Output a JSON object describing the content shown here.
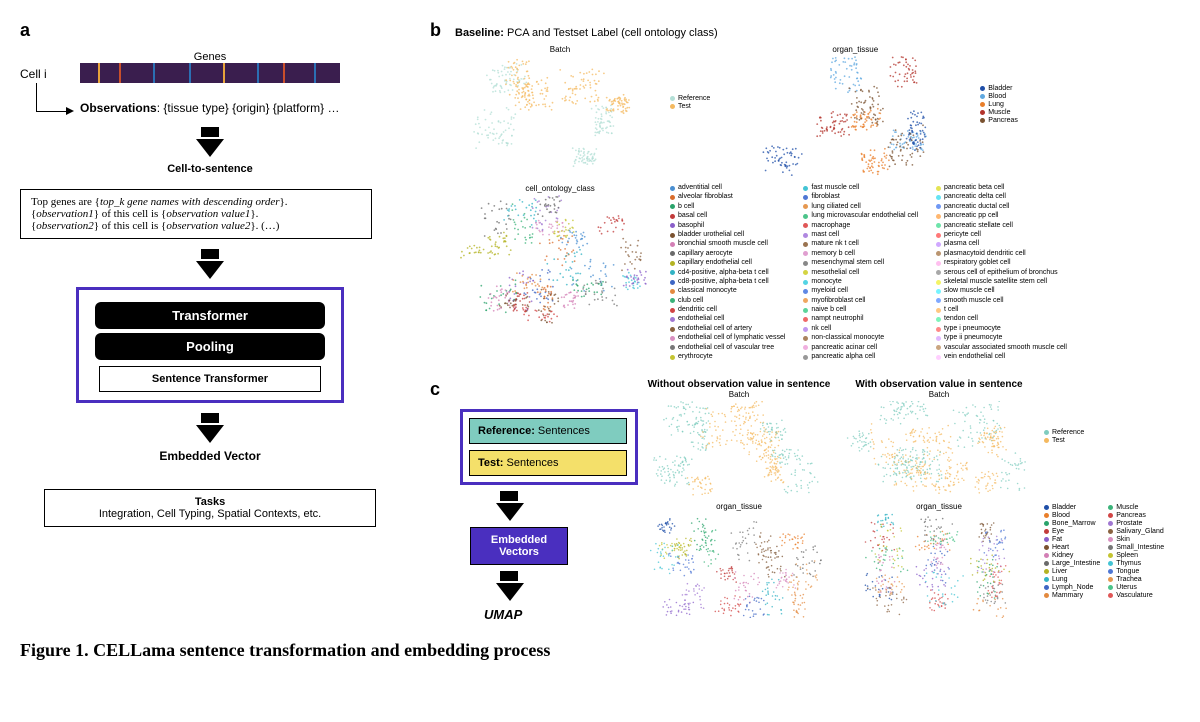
{
  "panelA": {
    "label": "a",
    "genesLabel": "Genes",
    "cellLabel": "Cell i",
    "geneTicks": [
      {
        "pos": 0.07,
        "color": "#e8a33b"
      },
      {
        "pos": 0.15,
        "color": "#c94f2b"
      },
      {
        "pos": 0.28,
        "color": "#2b6fb3"
      },
      {
        "pos": 0.42,
        "color": "#2b6fb3"
      },
      {
        "pos": 0.55,
        "color": "#e8a33b"
      },
      {
        "pos": 0.68,
        "color": "#2b6fb3"
      },
      {
        "pos": 0.78,
        "color": "#c94f2b"
      },
      {
        "pos": 0.9,
        "color": "#2b6fb3"
      }
    ],
    "observationsLine": "Observations: {tissue type} {origin} {platform} …",
    "cellToSentence": "Cell-to-sentence",
    "sentenceBox": "Top genes are {top_k gene names with descending order}. {observation1} of this cell is {observation value1}. {observation2} of this cell is {observation value2}. (…)",
    "transformerLabel": "Transformer",
    "poolingLabel": "Pooling",
    "sentenceTransformerLabel": "Sentence Transformer",
    "embeddedLabel": "Embedded Vector",
    "tasksTitle": "Tasks",
    "tasksBody": "Integration, Cell Typing, Spatial Contexts, etc."
  },
  "panelB": {
    "label": "b",
    "title": "Baseline: PCA and Testset Label (cell ontology class)",
    "batchTitle": "Batch",
    "organTitle": "organ_tissue",
    "ontologyTitle": "cell_ontology_class",
    "batchLegend": [
      {
        "label": "Reference",
        "color": "#b3dfd6"
      },
      {
        "label": "Test",
        "color": "#f4b960"
      }
    ],
    "organLegend": [
      {
        "label": "Bladder",
        "color": "#1f4fa8"
      },
      {
        "label": "Blood",
        "color": "#5fa8e0"
      },
      {
        "label": "Lung",
        "color": "#e97f2b"
      },
      {
        "label": "Muscle",
        "color": "#b3332b"
      },
      {
        "label": "Pancreas",
        "color": "#7a5230"
      }
    ],
    "ontologyLegend": [
      [
        "adventitial cell",
        "alveolar fibroblast",
        "b cell",
        "basal cell",
        "basophil",
        "bladder urothelial cell",
        "bronchial smooth muscle cell",
        "capillary aerocyte",
        "capillary endothelial cell",
        "cd4-positive, alpha-beta t cell",
        "cd8-positive, alpha-beta t cell",
        "classical monocyte",
        "club cell",
        "dendritic cell",
        "endothelial cell",
        "endothelial cell of artery",
        "endothelial cell of lymphatic vessel",
        "endothelial cell of vascular tree",
        "erythrocyte"
      ],
      [
        "fast muscle cell",
        "fibroblast",
        "lung ciliated cell",
        "lung microvascular endothelial cell",
        "macrophage",
        "mast cell",
        "mature nk t cell",
        "memory b cell",
        "mesenchymal stem cell",
        "mesothelial cell",
        "monocyte",
        "myeloid cell",
        "myofibroblast cell",
        "naive b cell",
        "nampt neutrophil",
        "nk cell",
        "non-classical monocyte",
        "pancreatic acinar cell",
        "pancreatic alpha cell"
      ],
      [
        "pancreatic beta cell",
        "pancreatic delta cell",
        "pancreatic ductal cell",
        "pancreatic pp cell",
        "pancreatic stellate cell",
        "pericyte cell",
        "plasma cell",
        "plasmacytoid dendritic cell",
        "respiratory goblet cell",
        "serous cell of epithelium of bronchus",
        "skeletal muscle satellite stem cell",
        "slow muscle cell",
        "smooth muscle cell",
        "t cell",
        "tendon cell",
        "type i pneumocyte",
        "type ii pneumocyte",
        "vascular associated smooth muscle cell",
        "vein endothelial cell"
      ]
    ],
    "ontologyColors": [
      "#4a8fd1",
      "#d96c2b",
      "#2aa36b",
      "#c23b3b",
      "#8a5fc9",
      "#7a5230",
      "#d37fb5",
      "#6a6a6a",
      "#b3b323",
      "#32b3c4",
      "#3e66c4",
      "#e38a3f",
      "#3bb37a",
      "#d14545",
      "#a077d1",
      "#8a6240",
      "#d98fc0",
      "#787878",
      "#c4c432",
      "#43c4d4",
      "#4f77d4",
      "#e69850",
      "#4cc48a",
      "#e05757",
      "#b088e0",
      "#9a7350",
      "#e09fd0",
      "#888888",
      "#d4d443",
      "#54d4e4",
      "#5f88e4",
      "#f0a760",
      "#5dd49a",
      "#ef6868",
      "#c098f0",
      "#aa8460",
      "#f0afdf",
      "#989898",
      "#e4e454",
      "#65e4f4",
      "#6f98f4",
      "#ffb770",
      "#6ee4aa",
      "#ff7878",
      "#d0a8ff",
      "#ba9570",
      "#ffbfef",
      "#a8a8a8",
      "#f4f465",
      "#76f4ff",
      "#7fa8ff",
      "#ffc780",
      "#7ef4ba",
      "#ff8888",
      "#e0b8ff",
      "#caa580",
      "#ffcfff"
    ],
    "scatterPalette": [
      "#4a8fd1",
      "#d96c2b",
      "#2aa36b",
      "#c23b3b",
      "#8a5fc9",
      "#7a5230",
      "#d37fb5",
      "#6a6a6a",
      "#b3b323",
      "#32b3c4",
      "#3e66c4",
      "#e38a3f",
      "#3bb37a",
      "#d14545",
      "#a077d1",
      "#8a6240",
      "#d98fc0",
      "#787878",
      "#c4c432",
      "#43c4d4"
    ]
  },
  "panelC": {
    "label": "c",
    "withoutTitle": "Without observation value in sentence",
    "withTitle": "With observation value in sentence",
    "batchTitle": "Batch",
    "organTitle": "organ_tissue",
    "refLabel": "Reference:",
    "refBody": "Sentences",
    "testLabel": "Test:",
    "testBody": "Sentences",
    "embLabel": "Embedded Vectors",
    "umapLabel": "UMAP",
    "batchLegend": [
      {
        "label": "Reference",
        "color": "#7fccbf"
      },
      {
        "label": "Test",
        "color": "#f4b960"
      }
    ],
    "organLegend": [
      {
        "label": "Bladder",
        "color": "#1f4fa8"
      },
      {
        "label": "Blood",
        "color": "#e97f2b"
      },
      {
        "label": "Bone_Marrow",
        "color": "#2aa36b"
      },
      {
        "label": "Eye",
        "color": "#c23b3b"
      },
      {
        "label": "Fat",
        "color": "#8a5fc9"
      },
      {
        "label": "Heart",
        "color": "#7a5230"
      },
      {
        "label": "Kidney",
        "color": "#d37fb5"
      },
      {
        "label": "Large_Intestine",
        "color": "#6a6a6a"
      },
      {
        "label": "Liver",
        "color": "#b3b323"
      },
      {
        "label": "Lung",
        "color": "#32b3c4"
      },
      {
        "label": "Lymph_Node",
        "color": "#3e66c4"
      },
      {
        "label": "Mammary",
        "color": "#e38a3f"
      },
      {
        "label": "Muscle",
        "color": "#3bb37a"
      },
      {
        "label": "Pancreas",
        "color": "#d14545"
      },
      {
        "label": "Prostate",
        "color": "#a077d1"
      },
      {
        "label": "Salivary_Gland",
        "color": "#8a6240"
      },
      {
        "label": "Skin",
        "color": "#d98fc0"
      },
      {
        "label": "Small_Intestine",
        "color": "#787878"
      },
      {
        "label": "Spleen",
        "color": "#c4c432"
      },
      {
        "label": "Thymus",
        "color": "#43c4d4"
      },
      {
        "label": "Tongue",
        "color": "#4f77d4"
      },
      {
        "label": "Trachea",
        "color": "#e69850"
      },
      {
        "label": "Uterus",
        "color": "#4cc48a"
      },
      {
        "label": "Vasculature",
        "color": "#e05757"
      }
    ]
  },
  "caption": "Figure 1. CELLama sentence transformation and embedding process",
  "style": {
    "purple": "#4a2fbf",
    "genesBarBg": "#3a1e4e"
  }
}
